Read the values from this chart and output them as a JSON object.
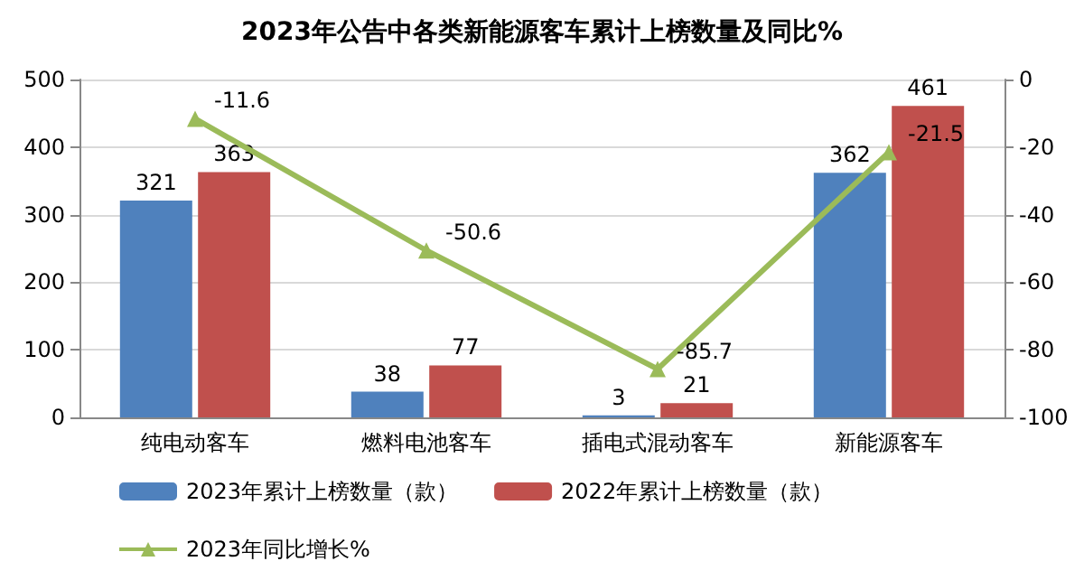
{
  "chart_data": {
    "type": "bar",
    "title": "2023年公告中各类新能源客车累计上榜数量及同比%",
    "categories": [
      "纯电动客车",
      "燃料电池客车",
      "插电式混动客车",
      "新能源客车"
    ],
    "series": [
      {
        "name": "2023年累计上榜数量（款）",
        "color": "#4f81bd",
        "values": [
          321,
          38,
          3,
          362
        ]
      },
      {
        "name": "2022年累计上榜数量（款）",
        "color": "#c0504d",
        "values": [
          363,
          77,
          21,
          461
        ]
      },
      {
        "name": "2023年同比增长%",
        "type": "line",
        "axis": "y2",
        "color": "#9bbb59",
        "marker": "triangle",
        "values": [
          -11.6,
          -50.6,
          -85.7,
          -21.5
        ]
      }
    ],
    "ylim": [
      0,
      500
    ],
    "yticks": [
      0,
      100,
      200,
      300,
      400,
      500
    ],
    "y2lim": [
      -100,
      0
    ],
    "y2ticks": [
      -100,
      -80,
      -60,
      -40,
      -20,
      0
    ],
    "grid": "y",
    "legend": "bottom",
    "data_labels": true
  }
}
